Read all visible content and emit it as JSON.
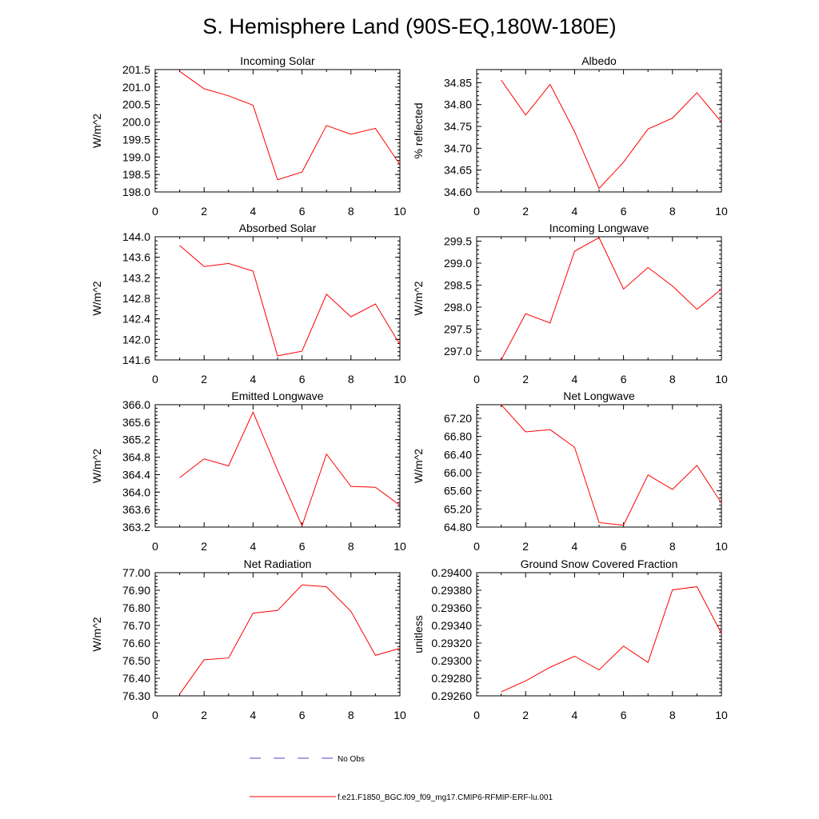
{
  "figure": {
    "title": "S. Hemisphere Land (90S-EQ,180W-180E)"
  },
  "legend": {
    "entries": [
      {
        "label": "No Obs",
        "color": "#4b4bd0",
        "dash": "dashed"
      },
      {
        "label": "f.e21.F1850_BGC.f09_f09_mg17.CMIP6-RFMIP-ERF-lu.001",
        "color": "#ff0000",
        "dash": "solid"
      }
    ]
  },
  "chart_data": [
    {
      "type": "line",
      "title": "Incoming Solar",
      "ylabel": "W/m^2",
      "xlim": [
        0,
        10
      ],
      "ylim": [
        198.0,
        201.5
      ],
      "xticks": [
        "0",
        "2",
        "4",
        "6",
        "8",
        "10"
      ],
      "yticks": [
        "198.0",
        "198.5",
        "199.0",
        "199.5",
        "200.0",
        "200.5",
        "201.0",
        "201.5"
      ],
      "x": [
        1,
        2,
        3,
        4,
        5,
        6,
        7,
        8,
        9,
        10
      ],
      "series": [
        {
          "name": "f.e21.F1850_BGC.f09_f09_mg17.CMIP6-RFMIP-ERF-lu.001",
          "color": "#ff0000",
          "values": [
            201.45,
            200.95,
            200.75,
            200.48,
            198.35,
            198.57,
            199.9,
            199.65,
            199.82,
            198.78
          ]
        }
      ]
    },
    {
      "type": "line",
      "title": "Albedo",
      "ylabel": "% reflected",
      "xlim": [
        0,
        10
      ],
      "ylim": [
        34.6,
        34.88
      ],
      "xticks": [
        "0",
        "2",
        "4",
        "6",
        "8",
        "10"
      ],
      "yticks": [
        "34.60",
        "34.65",
        "34.70",
        "34.75",
        "34.80",
        "34.85"
      ],
      "x": [
        1,
        2,
        3,
        4,
        5,
        6,
        7,
        8,
        9,
        10
      ],
      "series": [
        {
          "name": "f.e21.F1850_BGC.f09_f09_mg17.CMIP6-RFMIP-ERF-lu.001",
          "color": "#ff0000",
          "values": [
            34.856,
            34.776,
            34.846,
            34.738,
            34.608,
            34.668,
            34.744,
            34.769,
            34.827,
            34.76
          ]
        }
      ]
    },
    {
      "type": "line",
      "title": "Absorbed Solar",
      "ylabel": "W/m^2",
      "xlim": [
        0,
        10
      ],
      "ylim": [
        141.6,
        144.0
      ],
      "xticks": [
        "0",
        "2",
        "4",
        "6",
        "8",
        "10"
      ],
      "yticks": [
        "141.6",
        "142.0",
        "142.4",
        "142.8",
        "143.2",
        "143.6",
        "144.0"
      ],
      "x": [
        1,
        2,
        3,
        4,
        5,
        6,
        7,
        8,
        9,
        10
      ],
      "series": [
        {
          "name": "f.e21.F1850_BGC.f09_f09_mg17.CMIP6-RFMIP-ERF-lu.001",
          "color": "#ff0000",
          "values": [
            143.83,
            143.42,
            143.48,
            143.33,
            141.68,
            141.77,
            142.88,
            142.44,
            142.69,
            141.9
          ]
        }
      ]
    },
    {
      "type": "line",
      "title": "Incoming Longwave",
      "ylabel": "W/m^2",
      "xlim": [
        0,
        10
      ],
      "ylim": [
        296.8,
        299.6
      ],
      "xticks": [
        "0",
        "2",
        "4",
        "6",
        "8",
        "10"
      ],
      "yticks": [
        "297.0",
        "297.5",
        "298.0",
        "298.5",
        "299.0",
        "299.5"
      ],
      "x": [
        1,
        2,
        3,
        4,
        5,
        6,
        7,
        8,
        9,
        10
      ],
      "series": [
        {
          "name": "f.e21.F1850_BGC.f09_f09_mg17.CMIP6-RFMIP-ERF-lu.001",
          "color": "#ff0000",
          "values": [
            296.8,
            297.85,
            297.64,
            299.27,
            299.58,
            298.41,
            298.9,
            298.48,
            297.95,
            298.41
          ]
        }
      ]
    },
    {
      "type": "line",
      "title": "Emitted Longwave",
      "ylabel": "W/m^2",
      "xlim": [
        0,
        10
      ],
      "ylim": [
        363.2,
        366.0
      ],
      "xticks": [
        "0",
        "2",
        "4",
        "6",
        "8",
        "10"
      ],
      "yticks": [
        "363.2",
        "363.6",
        "364.0",
        "364.4",
        "364.8",
        "365.2",
        "365.6",
        "366.0"
      ],
      "x": [
        1,
        2,
        3,
        4,
        5,
        6,
        7,
        8,
        9,
        10
      ],
      "series": [
        {
          "name": "f.e21.F1850_BGC.f09_f09_mg17.CMIP6-RFMIP-ERF-lu.001",
          "color": "#ff0000",
          "values": [
            364.33,
            364.76,
            364.6,
            365.83,
            364.5,
            363.23,
            364.87,
            364.13,
            364.11,
            363.7
          ]
        }
      ]
    },
    {
      "type": "line",
      "title": "Net Longwave",
      "ylabel": "W/m^2",
      "xlim": [
        0,
        10
      ],
      "ylim": [
        64.8,
        67.5
      ],
      "xticks": [
        "0",
        "2",
        "4",
        "6",
        "8",
        "10"
      ],
      "yticks": [
        "64.80",
        "65.20",
        "65.60",
        "66.00",
        "66.40",
        "66.80",
        "67.20"
      ],
      "x": [
        1,
        2,
        3,
        4,
        5,
        6,
        7,
        8,
        9,
        10
      ],
      "series": [
        {
          "name": "f.e21.F1850_BGC.f09_f09_mg17.CMIP6-RFMIP-ERF-lu.001",
          "color": "#ff0000",
          "values": [
            67.5,
            66.9,
            66.95,
            66.56,
            64.9,
            64.84,
            65.95,
            65.63,
            66.16,
            65.33
          ]
        }
      ]
    },
    {
      "type": "line",
      "title": "Net Radiation",
      "ylabel": "W/m^2",
      "xlim": [
        0,
        10
      ],
      "ylim": [
        76.3,
        77.0
      ],
      "xticks": [
        "0",
        "2",
        "4",
        "6",
        "8",
        "10"
      ],
      "yticks": [
        "76.30",
        "76.40",
        "76.50",
        "76.60",
        "76.70",
        "76.80",
        "76.90",
        "77.00"
      ],
      "x": [
        1,
        2,
        3,
        4,
        5,
        6,
        7,
        8,
        9,
        10
      ],
      "series": [
        {
          "name": "f.e21.F1850_BGC.f09_f09_mg17.CMIP6-RFMIP-ERF-lu.001",
          "color": "#ff0000",
          "values": [
            76.31,
            76.505,
            76.515,
            76.77,
            76.785,
            76.93,
            76.92,
            76.78,
            76.53,
            76.57
          ]
        }
      ]
    },
    {
      "type": "line",
      "title": "Ground Snow Covered Fraction",
      "ylabel": "unitless",
      "xlim": [
        0,
        10
      ],
      "ylim": [
        0.2926,
        0.294
      ],
      "xticks": [
        "0",
        "2",
        "4",
        "6",
        "8",
        "10"
      ],
      "yticks": [
        "0.29260",
        "0.29280",
        "0.29300",
        "0.29320",
        "0.29340",
        "0.29360",
        "0.29380",
        "0.29400"
      ],
      "x": [
        1,
        2,
        3,
        4,
        5,
        6,
        7,
        8,
        9,
        10
      ],
      "series": [
        {
          "name": "f.e21.F1850_BGC.f09_f09_mg17.CMIP6-RFMIP-ERF-lu.001",
          "color": "#ff0000",
          "values": [
            0.292645,
            0.29277,
            0.292925,
            0.29305,
            0.292895,
            0.293165,
            0.29298,
            0.293805,
            0.29384,
            0.29331
          ]
        }
      ]
    }
  ]
}
